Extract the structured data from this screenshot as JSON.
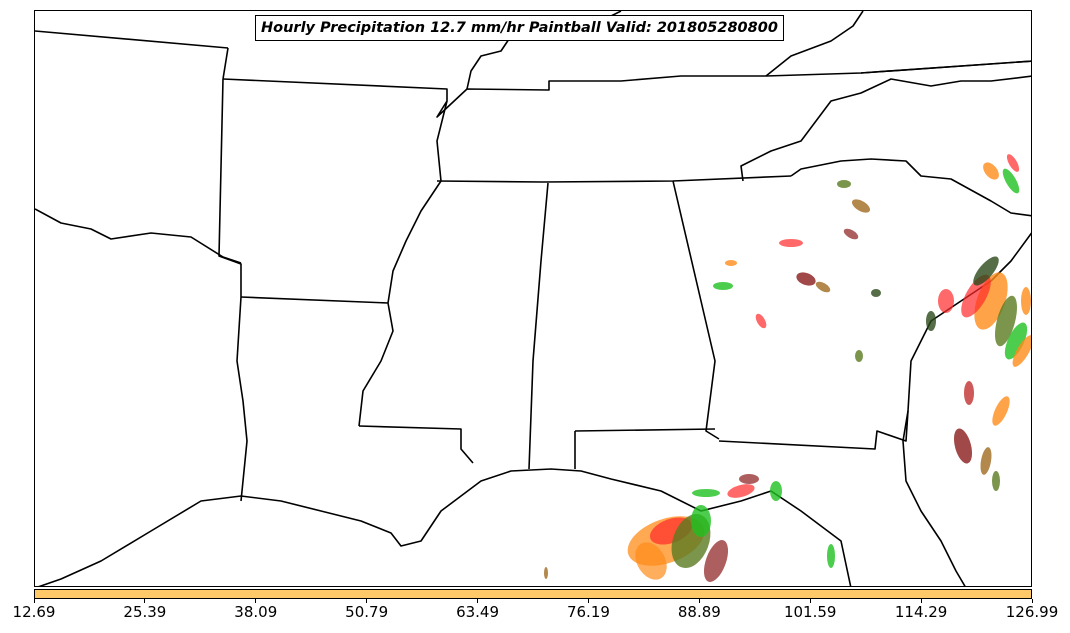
{
  "map": {
    "title": "Hourly Precipitation 12.7 mm/hr Paintball Valid: 201805280800",
    "background_color": "#ffffff",
    "border_color": "#000000"
  },
  "legend": {
    "colorbar_color": "#ffc868",
    "ticks": [
      "12.69",
      "25.39",
      "38.09",
      "50.79",
      "63.49",
      "76.19",
      "88.89",
      "101.59",
      "114.29",
      "126.99"
    ]
  },
  "paintball_colors": [
    "#ff2a2a",
    "#ff8c1a",
    "#20c020",
    "#5a7a20",
    "#8a1a1a",
    "#a06a20",
    "#2a4a1a",
    "#c03030"
  ]
}
